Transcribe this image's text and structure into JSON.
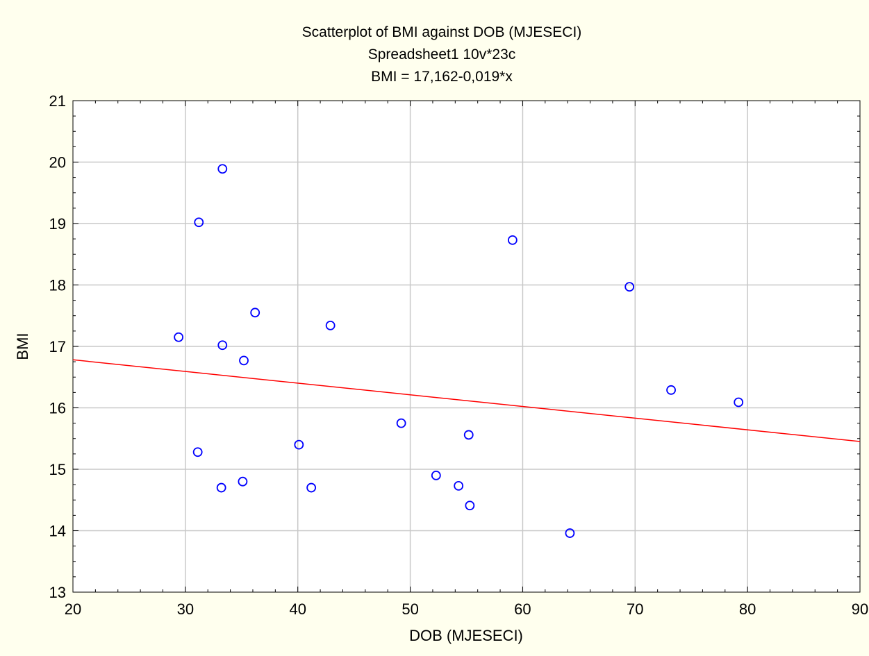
{
  "chart_data": {
    "type": "scatter",
    "title": "Scatterplot of BMI against DOB (MJESECI)",
    "subtitle": "Spreadsheet1 10v*23c",
    "equation": "BMI = 17,162-0,019*x",
    "xlabel": "DOB (MJESECI)",
    "ylabel": "BMI",
    "xlim": [
      20,
      90
    ],
    "ylim": [
      13,
      21
    ],
    "x_ticks": [
      20,
      30,
      40,
      50,
      60,
      70,
      80,
      90
    ],
    "y_ticks": [
      13,
      14,
      15,
      16,
      17,
      18,
      19,
      20,
      21
    ],
    "grid": true,
    "colors": {
      "background": "#ffffee",
      "plot_background": "#ffffff",
      "points": "#0000ff",
      "fit_line": "#ff0000",
      "grid": "#c8c8c8"
    },
    "fit_line": {
      "intercept": 17.162,
      "slope": -0.019
    },
    "points": [
      {
        "x": 29.4,
        "y": 17.15
      },
      {
        "x": 31.1,
        "y": 15.28
      },
      {
        "x": 31.2,
        "y": 19.02
      },
      {
        "x": 33.2,
        "y": 14.7
      },
      {
        "x": 33.3,
        "y": 17.02
      },
      {
        "x": 33.3,
        "y": 19.89
      },
      {
        "x": 35.1,
        "y": 14.8
      },
      {
        "x": 35.2,
        "y": 16.77
      },
      {
        "x": 36.2,
        "y": 17.55
      },
      {
        "x": 40.1,
        "y": 15.4
      },
      {
        "x": 41.2,
        "y": 14.7
      },
      {
        "x": 42.9,
        "y": 17.34
      },
      {
        "x": 49.2,
        "y": 15.75
      },
      {
        "x": 52.3,
        "y": 14.9
      },
      {
        "x": 54.3,
        "y": 14.73
      },
      {
        "x": 55.2,
        "y": 15.56
      },
      {
        "x": 55.3,
        "y": 14.41
      },
      {
        "x": 59.1,
        "y": 18.73
      },
      {
        "x": 64.2,
        "y": 13.96
      },
      {
        "x": 69.5,
        "y": 17.97
      },
      {
        "x": 73.2,
        "y": 16.29
      },
      {
        "x": 79.2,
        "y": 16.09
      }
    ]
  }
}
